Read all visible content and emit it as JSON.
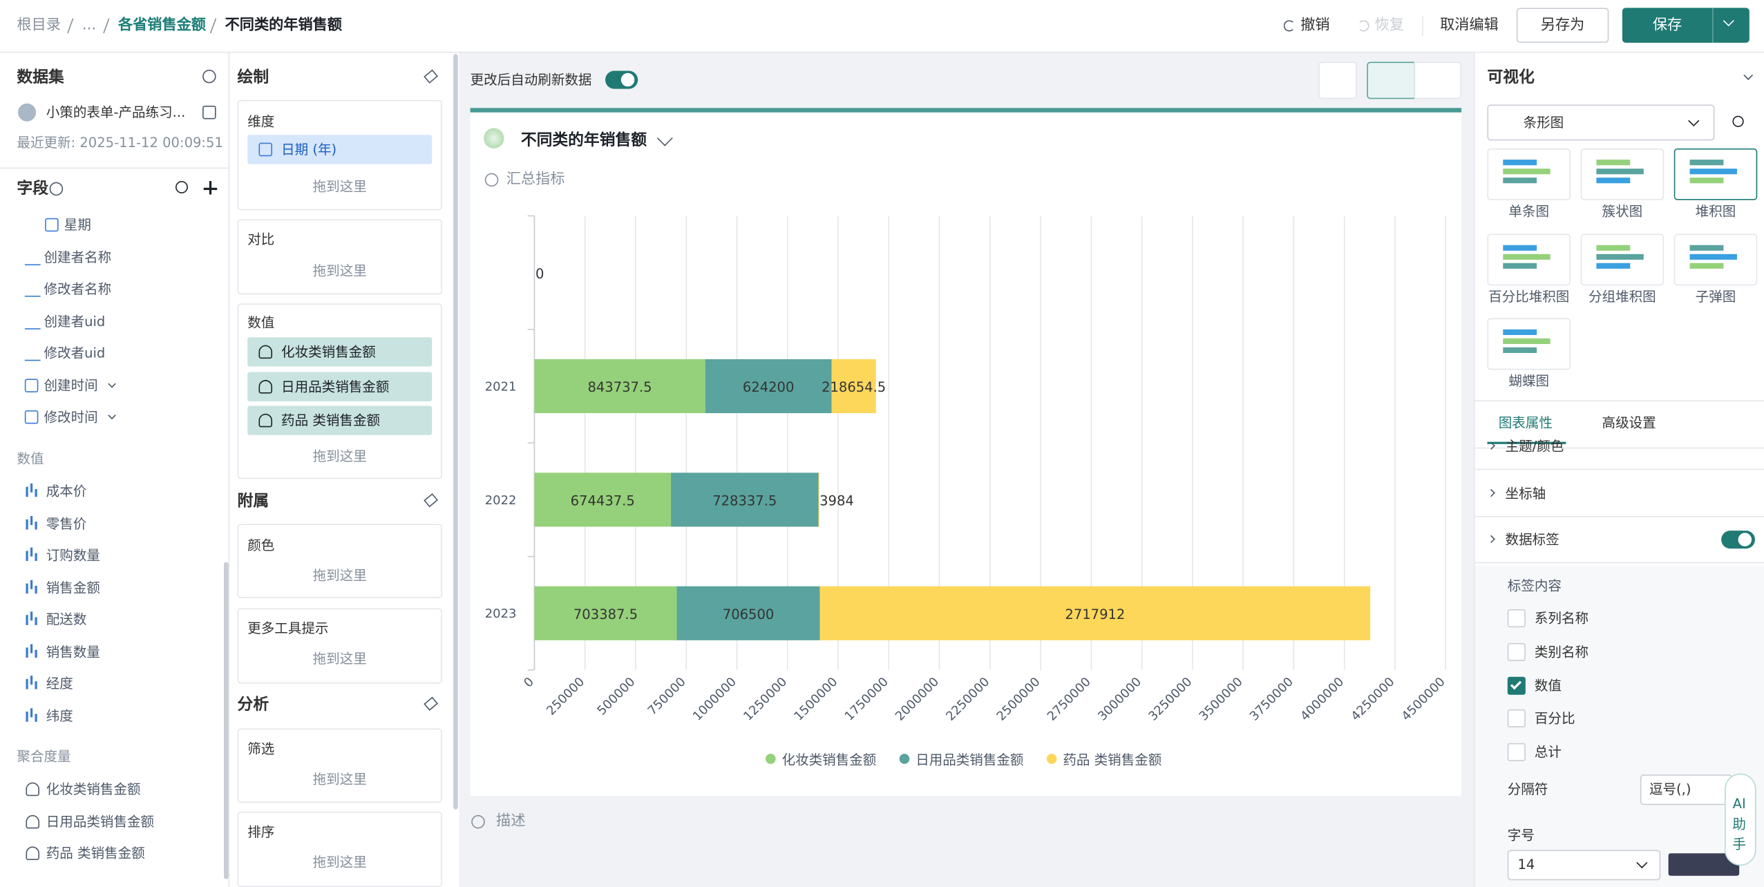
{
  "breadcrumb": [
    "根目录",
    "...",
    "各省销售金额",
    "不同类的年销售额"
  ],
  "toolbar": {
    "undo": "撤销",
    "redo": "恢复",
    "cancel": "取消编辑",
    "save_as": "另存为",
    "save": "保存"
  },
  "dataset": {
    "title": "数据集",
    "name": "小策的表单-产品练习...",
    "updated": "最近更新: 2025-11-12 00:09:51"
  },
  "fields": {
    "title": "字段",
    "dimension_items": [
      "星期",
      "创建者名称",
      "修改者名称",
      "创建者uid",
      "修改者uid",
      "创建时间",
      "修改时间"
    ],
    "value_group": "数值",
    "value_items": [
      "成本价",
      "零售价",
      "订购数量",
      "销售金额",
      "配送数",
      "销售数量",
      "经度",
      "纬度"
    ],
    "agg_group": "聚合度量",
    "agg_items": [
      "化妆类销售金额",
      "日用品类销售金额",
      "药品 类销售金额"
    ]
  },
  "draw": {
    "title": "绘制",
    "dimension": "维度",
    "dimension_field": "日期 (年)",
    "drop": "拖到这里",
    "compare": "对比",
    "values": "数值",
    "value_fields": [
      "化妆类销售金额",
      "日用品类销售金额",
      "药品 类销售金额"
    ],
    "attach": "附属",
    "color": "颜色",
    "tooltip": "更多工具提示",
    "analysis": "分析",
    "filter": "筛选",
    "sort": "排序"
  },
  "canvas": {
    "auto_refresh": "更改后自动刷新数据",
    "summary": "汇总指标",
    "describe": "描述"
  },
  "chart_data": {
    "type": "stacked_barh",
    "title": "不同类的年销售额",
    "categories": [
      null,
      "2021",
      "2022",
      "2023"
    ],
    "series": [
      {
        "name": "化妆类销售金额",
        "color": "#95d17a",
        "values": [
          0,
          843737.5,
          674437.5,
          703387.5
        ]
      },
      {
        "name": "日用品类销售金额",
        "color": "#5aa39e",
        "values": [
          null,
          624200,
          728337.5,
          706500
        ]
      },
      {
        "name": "药品 类销售金额",
        "color": "#fdd75a",
        "values": [
          null,
          218654.5,
          3984,
          2717912
        ]
      }
    ],
    "xlim": [
      0,
      4500000
    ],
    "xticks": [
      0,
      250000,
      500000,
      750000,
      1000000,
      1250000,
      1500000,
      1750000,
      2000000,
      2250000,
      2500000,
      2750000,
      3000000,
      3250000,
      3500000,
      3750000,
      4000000,
      4250000,
      4500000
    ],
    "grid": true,
    "legend": "bottom"
  },
  "viz": {
    "title": "可视化",
    "chart_type": "条形图",
    "types": [
      "单条图",
      "簇状图",
      "堆积图",
      "百分比堆积图",
      "分组堆积图",
      "子弹图",
      "蝴蝶图"
    ],
    "tabs": [
      "图表属性",
      "高级设置"
    ],
    "sections": [
      "主题/颜色",
      "坐标轴",
      "数据标签"
    ],
    "label_content": "标签内容",
    "options": [
      "系列名称",
      "类别名称",
      "数值",
      "百分比",
      "总计"
    ],
    "checked": [
      false,
      false,
      true,
      false,
      false
    ],
    "separator": "分隔符",
    "separator_value": "逗号(,)",
    "font_size": "字号",
    "font_size_value": "14"
  },
  "ai": "AI助手"
}
